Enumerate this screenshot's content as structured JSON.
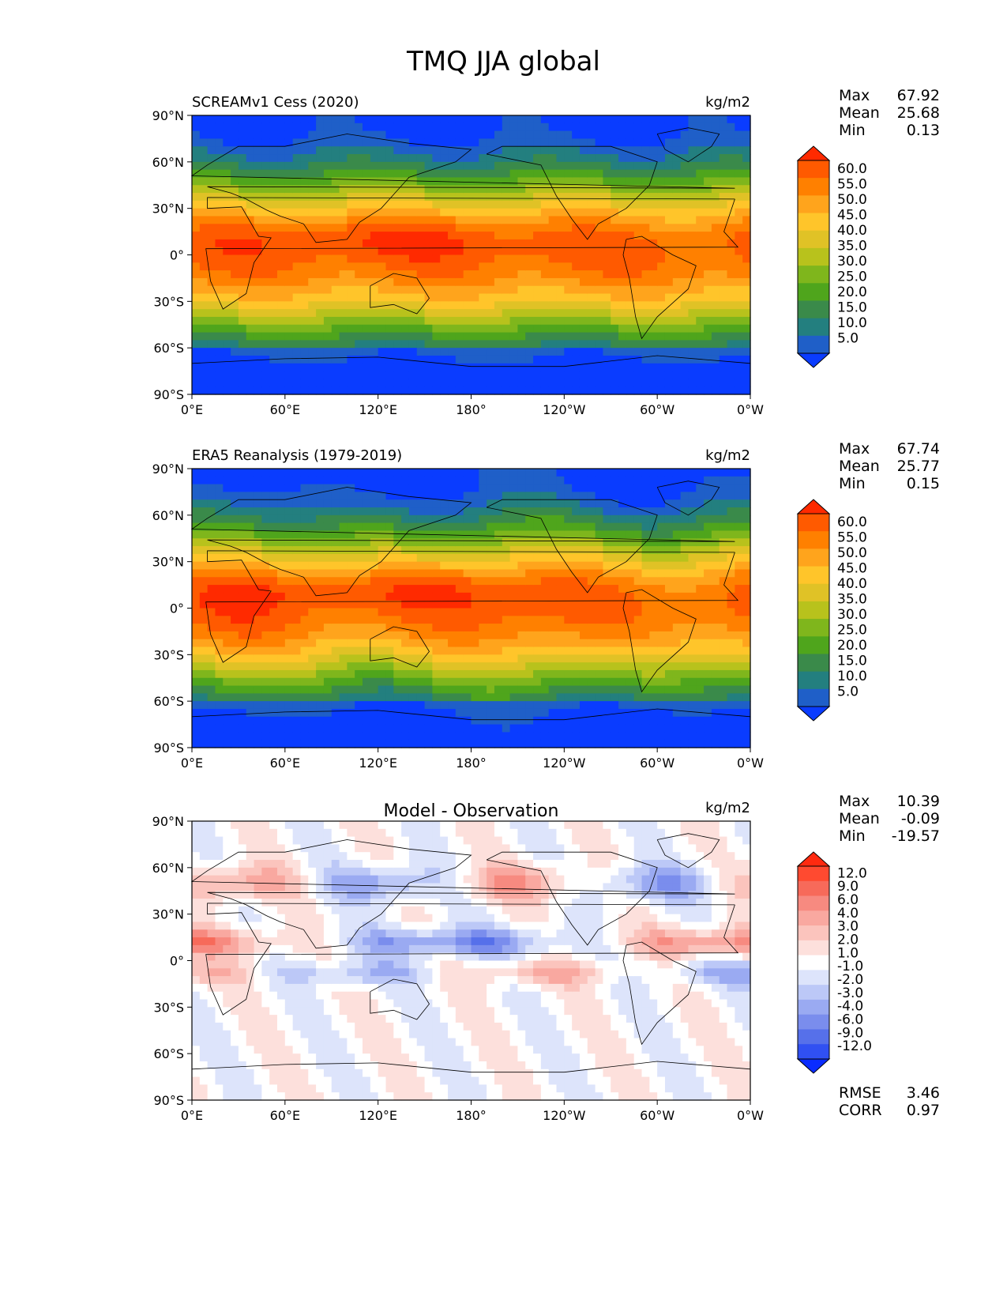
{
  "figure": {
    "title": "TMQ JJA global",
    "colors": {
      "land_outline": "#000000",
      "frame": "#000000"
    }
  },
  "chart_data": [
    {
      "type": "heatmap",
      "panel": "top",
      "title": "SCREAMv1 Cess (2020)",
      "units": "kg/m2",
      "x_ticks": [
        "0°E",
        "60°E",
        "120°E",
        "180°",
        "120°W",
        "60°W",
        "0°W"
      ],
      "y_ticks": [
        "90°N",
        "60°N",
        "30°N",
        "0°",
        "30°S",
        "60°S",
        "90°S"
      ],
      "stats": [
        {
          "label": "Max",
          "value": "67.92"
        },
        {
          "label": "Mean",
          "value": "25.68"
        },
        {
          "label": "Min",
          "value": "0.13"
        }
      ],
      "colorbar": {
        "extend": "both",
        "labels": [
          "60.0",
          "55.0",
          "50.0",
          "45.0",
          "40.0",
          "35.0",
          "30.0",
          "25.0",
          "20.0",
          "15.0",
          "10.0",
          "5.0"
        ],
        "colors": [
          "#ff2a00",
          "#ff5a00",
          "#ff8000",
          "#ffa41c",
          "#ffc52a",
          "#e0c226",
          "#b8c21c",
          "#7fb61c",
          "#4fa51c",
          "#3a8a4a",
          "#237f7f",
          "#1f5fc8",
          "#0a3cff"
        ]
      }
    },
    {
      "type": "heatmap",
      "panel": "middle",
      "title": "ERA5 Reanalysis (1979-2019)",
      "units": "kg/m2",
      "x_ticks": [
        "0°E",
        "60°E",
        "120°E",
        "180°",
        "120°W",
        "60°W",
        "0°W"
      ],
      "y_ticks": [
        "90°N",
        "60°N",
        "30°N",
        "0°",
        "30°S",
        "60°S",
        "90°S"
      ],
      "stats": [
        {
          "label": "Max",
          "value": "67.74"
        },
        {
          "label": "Mean",
          "value": "25.77"
        },
        {
          "label": "Min",
          "value": "0.15"
        }
      ],
      "colorbar": {
        "extend": "both",
        "labels": [
          "60.0",
          "55.0",
          "50.0",
          "45.0",
          "40.0",
          "35.0",
          "30.0",
          "25.0",
          "20.0",
          "15.0",
          "10.0",
          "5.0"
        ],
        "colors": [
          "#ff2a00",
          "#ff5a00",
          "#ff8000",
          "#ffa41c",
          "#ffc52a",
          "#e0c226",
          "#b8c21c",
          "#7fb61c",
          "#4fa51c",
          "#3a8a4a",
          "#237f7f",
          "#1f5fc8",
          "#0a3cff"
        ]
      }
    },
    {
      "type": "heatmap",
      "panel": "bottom",
      "title": "Model - Observation",
      "units": "kg/m2",
      "x_ticks": [
        "0°E",
        "60°E",
        "120°E",
        "180°",
        "120°W",
        "60°W",
        "0°W"
      ],
      "y_ticks": [
        "90°N",
        "60°N",
        "30°N",
        "0°",
        "30°S",
        "60°S",
        "90°S"
      ],
      "stats": [
        {
          "label": "Max",
          "value": "10.39"
        },
        {
          "label": "Mean",
          "value": "-0.09"
        },
        {
          "label": "Min",
          "value": "-19.57"
        }
      ],
      "extra_stats": [
        {
          "label": "RMSE",
          "value": "3.46"
        },
        {
          "label": "CORR",
          "value": "0.97"
        }
      ],
      "colorbar": {
        "extend": "both",
        "labels": [
          "12.0",
          "9.0",
          "6.0",
          "4.0",
          "3.0",
          "2.0",
          "1.0",
          "-1.0",
          "-2.0",
          "-3.0",
          "-4.0",
          "-6.0",
          "-9.0",
          "-12.0"
        ],
        "colors": [
          "#ff2a10",
          "#ff4a30",
          "#f76a5a",
          "#f78a80",
          "#f9a8a0",
          "#fbc4bd",
          "#fde0dc",
          "#ffffff",
          "#dde4fb",
          "#bcc8f7",
          "#9aaaf2",
          "#7a8ded",
          "#5670ea",
          "#3050f2",
          "#0a2cff"
        ]
      }
    }
  ]
}
